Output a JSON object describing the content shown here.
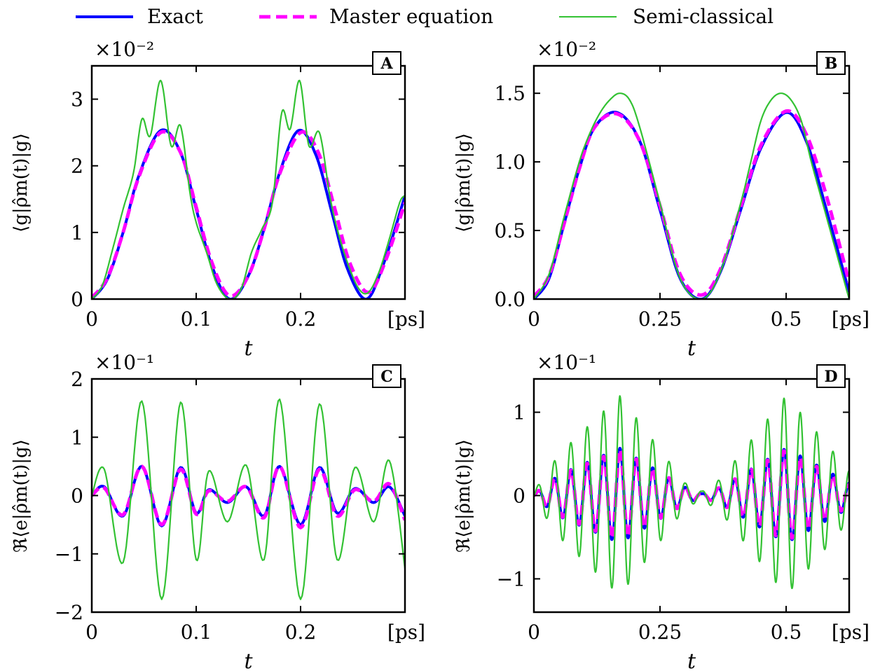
{
  "legend": {
    "entries": [
      {
        "label": "Exact",
        "color": "#0000ff",
        "style": "solid-thick"
      },
      {
        "label": "Master equation",
        "color": "#ff00ff",
        "style": "dashed-thick"
      },
      {
        "label": "Semi-classical",
        "color": "#33c233",
        "style": "solid-thin"
      }
    ]
  },
  "colors": {
    "exact": "#0000ff",
    "master": "#ff00ff",
    "semiclassical": "#33c233"
  },
  "chart_data": [
    {
      "type": "line",
      "panel": "A",
      "ylabel": "⟨g|ρ̂m(t)|g⟩",
      "xlabel": "t",
      "x_unit_label": "[ps]",
      "multiplier": "×10⁻²",
      "xlim": [
        0,
        0.3
      ],
      "ylim": [
        0,
        3.5
      ],
      "xticks": [
        0,
        0.1,
        0.2
      ],
      "xtick_labels": [
        "0",
        "0.1",
        "0.2"
      ],
      "yticks": [
        0,
        1,
        2,
        3
      ],
      "ytick_labels": [
        "0",
        "1",
        "2",
        "3"
      ],
      "series": [
        {
          "name": "Exact",
          "x": [
            0,
            0.015,
            0.03,
            0.045,
            0.066,
            0.085,
            0.1,
            0.115,
            0.132,
            0.15,
            0.165,
            0.18,
            0.198,
            0.215,
            0.23,
            0.245,
            0.263,
            0.28,
            0.3
          ],
          "y": [
            0,
            0.3,
            1.0,
            1.85,
            2.53,
            2.2,
            1.35,
            0.5,
            0,
            0.35,
            1.05,
            1.9,
            2.53,
            2.15,
            1.3,
            0.45,
            0,
            0.55,
            1.55
          ]
        },
        {
          "name": "Master equation",
          "x": [
            0,
            0.015,
            0.03,
            0.045,
            0.066,
            0.085,
            0.1,
            0.115,
            0.132,
            0.15,
            0.165,
            0.18,
            0.2,
            0.217,
            0.232,
            0.247,
            0.265,
            0.282,
            0.3
          ],
          "y": [
            0.02,
            0.32,
            1.0,
            1.83,
            2.5,
            2.2,
            1.38,
            0.55,
            0.05,
            0.35,
            1.05,
            1.88,
            2.5,
            2.2,
            1.4,
            0.55,
            0.1,
            0.6,
            1.45
          ]
        },
        {
          "name": "Semi-classical",
          "x": [
            0,
            0.01,
            0.02,
            0.03,
            0.04,
            0.048,
            0.056,
            0.066,
            0.076,
            0.085,
            0.094,
            0.1,
            0.11,
            0.12,
            0.132,
            0.143,
            0.153,
            0.163,
            0.173,
            0.182,
            0.19,
            0.199,
            0.208,
            0.218,
            0.228,
            0.236,
            0.246,
            0.256,
            0.265,
            0.275,
            0.285,
            0.295,
            0.3
          ],
          "y": [
            0,
            0.2,
            0.75,
            1.35,
            1.9,
            2.7,
            2.45,
            3.28,
            2.3,
            2.6,
            1.6,
            1.15,
            0.7,
            0.22,
            0,
            0.15,
            0.7,
            1.05,
            1.45,
            2.8,
            2.55,
            3.28,
            2.3,
            2.5,
            1.55,
            1.0,
            0.5,
            0.15,
            0.1,
            0.4,
            0.9,
            1.45,
            1.55
          ]
        }
      ]
    },
    {
      "type": "line",
      "panel": "B",
      "ylabel": "⟨g|ρ̂m(t)|g⟩",
      "xlabel": "t",
      "x_unit_label": "[ps]",
      "multiplier": "×10⁻²",
      "xlim": [
        0,
        0.625
      ],
      "ylim": [
        0,
        1.7
      ],
      "xticks": [
        0,
        0.25,
        0.5
      ],
      "xtick_labels": [
        "0",
        "0.25",
        "0.5"
      ],
      "yticks": [
        0,
        0.5,
        1.0,
        1.5
      ],
      "ytick_labels": [
        "0.0",
        "0.5",
        "1.0",
        "1.5"
      ],
      "series": [
        {
          "name": "Exact",
          "x": [
            0,
            0.03,
            0.06,
            0.09,
            0.12,
            0.165,
            0.21,
            0.25,
            0.29,
            0.333,
            0.37,
            0.41,
            0.45,
            0.5,
            0.54,
            0.58,
            0.625
          ],
          "y": [
            0,
            0.15,
            0.55,
            0.95,
            1.25,
            1.36,
            1.15,
            0.65,
            0.15,
            0,
            0.2,
            0.65,
            1.1,
            1.36,
            1.15,
            0.65,
            0.05
          ]
        },
        {
          "name": "Master equation",
          "x": [
            0,
            0.03,
            0.06,
            0.09,
            0.12,
            0.165,
            0.21,
            0.25,
            0.29,
            0.333,
            0.37,
            0.41,
            0.45,
            0.5,
            0.54,
            0.58,
            0.625
          ],
          "y": [
            0.02,
            0.17,
            0.55,
            0.95,
            1.25,
            1.35,
            1.15,
            0.68,
            0.18,
            0.03,
            0.22,
            0.67,
            1.12,
            1.37,
            1.2,
            0.75,
            0.12
          ]
        },
        {
          "name": "Semi-classical",
          "x": [
            0,
            0.03,
            0.06,
            0.09,
            0.11,
            0.13,
            0.15,
            0.17,
            0.19,
            0.21,
            0.25,
            0.29,
            0.333,
            0.37,
            0.41,
            0.43,
            0.45,
            0.47,
            0.49,
            0.51,
            0.53,
            0.55,
            0.58,
            0.625
          ],
          "y": [
            0,
            0.18,
            0.6,
            1.0,
            1.2,
            1.35,
            1.45,
            1.5,
            1.45,
            1.25,
            0.7,
            0.15,
            0,
            0.2,
            0.7,
            1.0,
            1.3,
            1.45,
            1.5,
            1.45,
            1.3,
            1.0,
            0.6,
            0
          ]
        }
      ]
    },
    {
      "type": "line",
      "panel": "C",
      "ylabel": "ℜ⟨e|ρ̂m(t)|g⟩",
      "xlabel": "t",
      "x_unit_label": "[ps]",
      "multiplier": "×10⁻¹",
      "xlim": [
        0,
        0.3
      ],
      "ylim": [
        -2,
        2
      ],
      "xticks": [
        0,
        0.1,
        0.2
      ],
      "xtick_labels": [
        "0",
        "0.1",
        "0.2"
      ],
      "yticks": [
        -2,
        -1,
        0,
        1,
        2
      ],
      "ytick_labels": [
        "−2",
        "−1",
        "0",
        "1",
        "2"
      ],
      "series": [
        {
          "name": "Exact",
          "x": [
            0,
            0.012,
            0.03,
            0.048,
            0.067,
            0.085,
            0.1,
            0.112,
            0.13,
            0.148,
            0.165,
            0.18,
            0.2,
            0.218,
            0.235,
            0.252,
            0.27,
            0.285,
            0.3
          ],
          "y": [
            0,
            0.15,
            -0.35,
            0.5,
            -0.52,
            0.48,
            -0.3,
            0.1,
            -0.12,
            0.15,
            -0.35,
            0.5,
            -0.5,
            0.48,
            -0.3,
            0.12,
            -0.12,
            0.15,
            -0.35
          ]
        },
        {
          "name": "Master equation",
          "x": [
            0,
            0.012,
            0.03,
            0.048,
            0.067,
            0.085,
            0.1,
            0.112,
            0.13,
            0.148,
            0.165,
            0.18,
            0.2,
            0.218,
            0.235,
            0.252,
            0.27,
            0.285,
            0.3
          ],
          "y": [
            0,
            0.13,
            -0.33,
            0.5,
            -0.5,
            0.45,
            -0.32,
            0.08,
            -0.1,
            0.15,
            -0.38,
            0.5,
            -0.55,
            0.45,
            -0.35,
            0.1,
            -0.1,
            0.2,
            -0.42
          ]
        },
        {
          "name": "Semi-classical",
          "x": [
            0,
            0.012,
            0.03,
            0.048,
            0.067,
            0.085,
            0.1,
            0.112,
            0.13,
            0.148,
            0.165,
            0.18,
            0.2,
            0.218,
            0.235,
            0.252,
            0.27,
            0.285,
            0.3
          ],
          "y": [
            0,
            0.45,
            -1.15,
            1.62,
            -1.78,
            1.6,
            -1.1,
            0.42,
            -0.45,
            0.52,
            -1.1,
            1.65,
            -1.78,
            1.57,
            -1.1,
            0.48,
            -0.45,
            0.6,
            -1.25
          ]
        }
      ]
    },
    {
      "type": "line",
      "panel": "D",
      "ylabel": "ℜ⟨e|ρ̂m(t)|g⟩",
      "xlabel": "t",
      "x_unit_label": "[ps]",
      "multiplier": "×10⁻¹",
      "xlim": [
        0,
        0.625
      ],
      "ylim": [
        -1.4,
        1.4
      ],
      "xticks": [
        0,
        0.25,
        0.5
      ],
      "xtick_labels": [
        "0",
        "0.25",
        "0.5"
      ],
      "yticks": [
        -1,
        0,
        1
      ],
      "ytick_labels": [
        "−1",
        "0",
        "1"
      ],
      "series": [
        {
          "name": "Exact",
          "oscillation": {
            "period": 0.0325,
            "envelope_t": [
              0,
              0.05,
              0.17,
              0.3,
              0.333,
              0.37,
              0.5,
              0.625
            ],
            "envelope_a": [
              0.02,
              0.25,
              0.57,
              0.1,
              0.02,
              0.1,
              0.57,
              0.15
            ]
          }
        },
        {
          "name": "Master equation",
          "oscillation": {
            "period": 0.0325,
            "envelope_t": [
              0,
              0.05,
              0.17,
              0.3,
              0.333,
              0.37,
              0.5,
              0.625
            ],
            "envelope_a": [
              0.02,
              0.24,
              0.55,
              0.1,
              0.02,
              0.1,
              0.55,
              0.13
            ]
          }
        },
        {
          "name": "Semi-classical",
          "oscillation": {
            "period": 0.0325,
            "envelope_t": [
              0,
              0.05,
              0.17,
              0.3,
              0.333,
              0.37,
              0.5,
              0.625
            ],
            "envelope_a": [
              0.05,
              0.5,
              1.2,
              0.15,
              0.05,
              0.2,
              1.2,
              0.3
            ]
          }
        }
      ]
    }
  ]
}
